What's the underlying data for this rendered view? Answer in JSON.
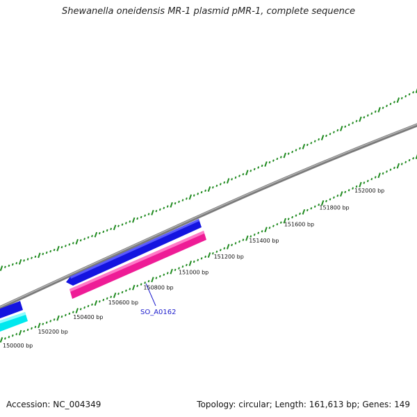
{
  "title": "Shewanella oneidensis MR-1 plasmid pMR-1, complete sequence",
  "footer": {
    "accession": "Accession: NC_004349",
    "topology": "Topology: circular; Length: 161,613 bp; Genes: 149"
  },
  "ruler": {
    "unit": "bp",
    "labels": [
      "150000 bp",
      "150200 bp",
      "150400 bp",
      "150600 bp",
      "150800 bp",
      "151000 bp",
      "151200 bp",
      "151400 bp",
      "151600 bp",
      "151800 bp",
      "152000 bp"
    ]
  },
  "features": {
    "label": "SO_A0162"
  },
  "colors": {
    "backbone": "#8a8a8a",
    "ticks": "#1f8a1f",
    "forward_gene": "#1414e0",
    "reverse_gene_cyan": "#00e8ee",
    "reverse_gene_pink": "#ee1c96",
    "feature_label": "#1a1acc"
  }
}
